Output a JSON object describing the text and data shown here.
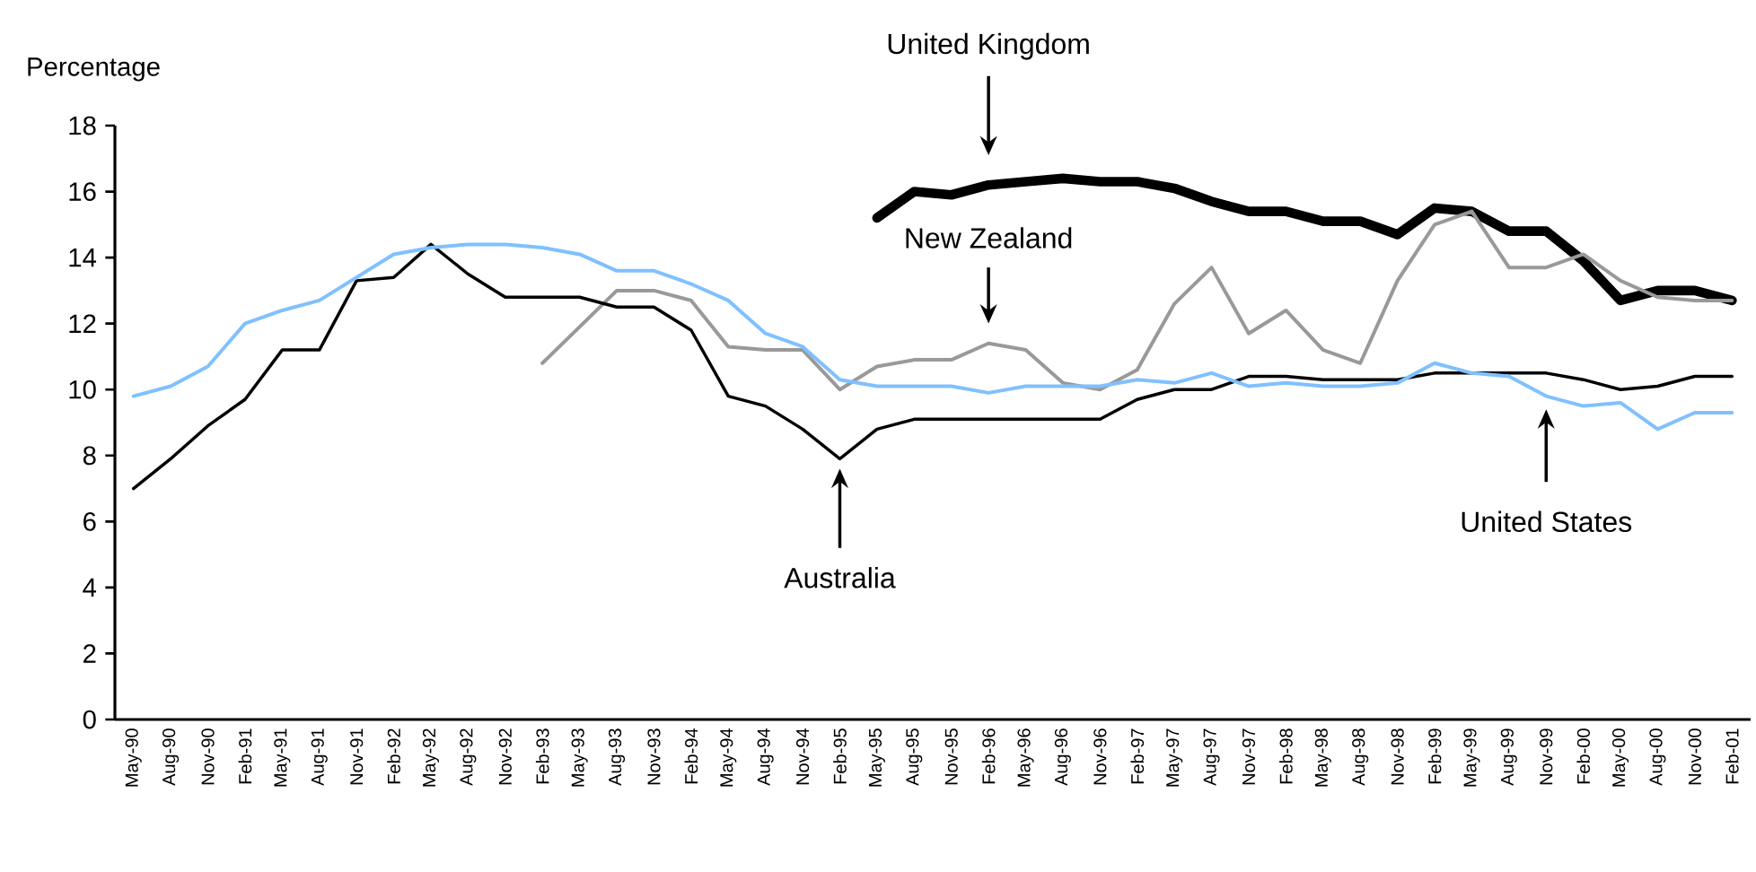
{
  "chart_data": {
    "type": "line",
    "ylabel": "Percentage",
    "categories": [
      "May-90",
      "Aug-90",
      "Nov-90",
      "Feb-91",
      "May-91",
      "Aug-91",
      "Nov-91",
      "Feb-92",
      "May-92",
      "Aug-92",
      "Nov-92",
      "Feb-93",
      "May-93",
      "Aug-93",
      "Nov-93",
      "Feb-94",
      "May-94",
      "Aug-94",
      "Nov-94",
      "Feb-95",
      "May-95",
      "Aug-95",
      "Nov-95",
      "Feb-96",
      "May-96",
      "Aug-96",
      "Nov-96",
      "Feb-97",
      "May-97",
      "Aug-97",
      "Nov-97",
      "Feb-98",
      "May-98",
      "Aug-98",
      "Nov-98",
      "Feb-99",
      "May-99",
      "Aug-99",
      "Nov-99",
      "Feb-00",
      "May-00",
      "Aug-00",
      "Nov-00",
      "Feb-01"
    ],
    "series": [
      {
        "color": "#000000",
        "values": [
          null,
          null,
          null,
          null,
          null,
          null,
          null,
          null,
          null,
          null,
          null,
          null,
          null,
          null,
          null,
          null,
          null,
          null,
          null,
          null,
          15.2,
          16.0,
          15.9,
          16.2,
          16.3,
          16.4,
          16.3,
          16.3,
          16.1,
          15.7,
          15.4,
          15.4,
          15.1,
          15.1,
          14.7,
          15.5,
          15.4,
          14.8,
          14.8,
          13.9,
          12.7,
          13.0,
          13.0,
          12.7
        ]
      },
      {
        "color": "#999999",
        "values": [
          null,
          null,
          null,
          null,
          null,
          null,
          null,
          null,
          null,
          null,
          null,
          10.8,
          11.9,
          13.0,
          13.0,
          12.7,
          11.3,
          11.2,
          11.2,
          10.0,
          10.7,
          10.9,
          10.9,
          11.4,
          11.2,
          10.2,
          10.0,
          10.6,
          12.6,
          13.7,
          11.7,
          12.4,
          11.2,
          10.8,
          13.3,
          15.0,
          15.4,
          13.7,
          13.7,
          14.1,
          13.3,
          12.8,
          12.7,
          12.7
        ]
      },
      {
        "color": "#000000",
        "values": [
          7.0,
          7.9,
          8.9,
          9.7,
          11.2,
          11.2,
          13.3,
          13.4,
          14.4,
          13.5,
          12.8,
          12.8,
          12.8,
          12.5,
          12.5,
          11.8,
          9.8,
          9.5,
          8.8,
          7.9,
          8.8,
          9.1,
          9.1,
          9.1,
          9.1,
          9.1,
          9.1,
          9.7,
          10.0,
          10.0,
          10.4,
          10.4,
          10.3,
          10.3,
          10.3,
          10.5,
          10.5,
          10.5,
          10.5,
          10.3,
          10.0,
          10.1,
          10.4,
          10.4
        ]
      },
      {
        "color": "#80c0ff",
        "values": [
          9.8,
          10.1,
          10.7,
          12.0,
          12.4,
          12.7,
          13.4,
          14.1,
          14.3,
          14.4,
          14.4,
          14.3,
          14.1,
          13.6,
          13.6,
          13.2,
          12.7,
          11.7,
          11.3,
          10.3,
          10.1,
          10.1,
          10.1,
          9.9,
          10.1,
          10.1,
          10.1,
          10.3,
          10.2,
          10.5,
          10.1,
          10.2,
          10.1,
          10.1,
          10.2,
          10.8,
          10.5,
          10.4,
          9.8,
          9.5,
          9.6,
          8.8,
          9.3,
          9.3
        ]
      }
    ],
    "annotations": [
      "United Kingdom",
      "New Zealand",
      "Australia",
      "United States"
    ],
    "ylim": [
      0,
      18
    ],
    "yticks": [
      0,
      2,
      4,
      6,
      8,
      10,
      12,
      14,
      16,
      18
    ],
    "grid": false
  }
}
